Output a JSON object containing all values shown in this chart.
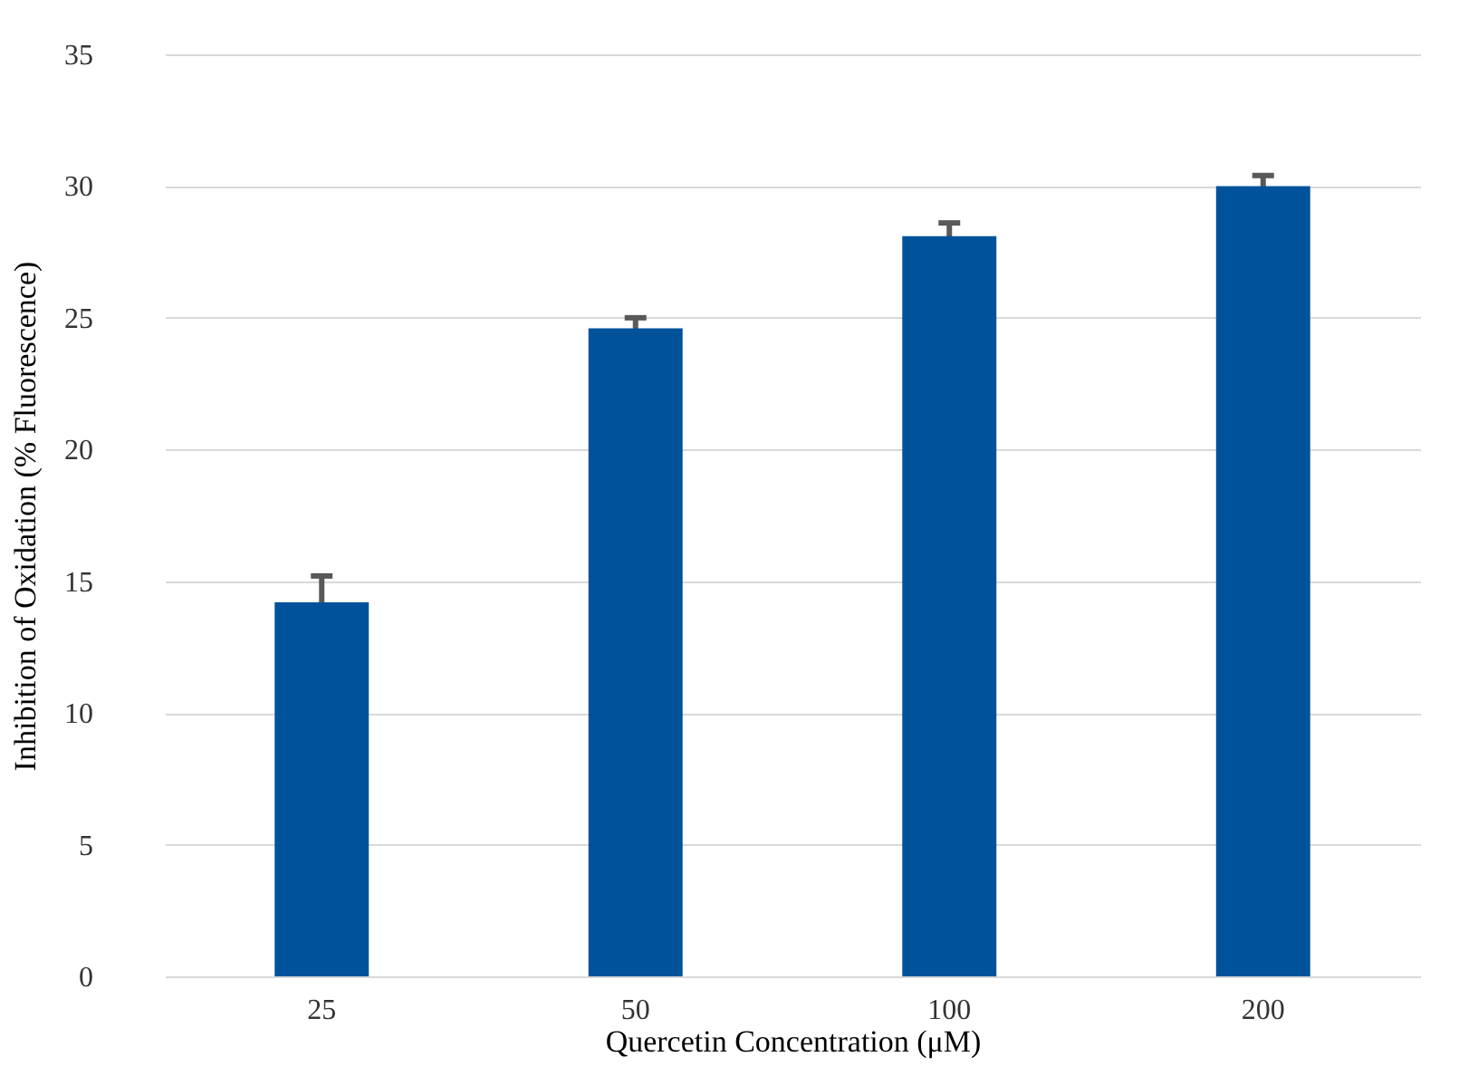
{
  "chart_data": {
    "type": "bar",
    "xlabel": "Quercetin Concentration (μM)",
    "ylabel": "Inhibition of Oxidation (% Fluorescence)",
    "categories": [
      "25",
      "50",
      "100",
      "200"
    ],
    "values": [
      14.2,
      24.6,
      28.1,
      30.0
    ],
    "errors": [
      1.0,
      0.4,
      0.5,
      0.4
    ],
    "color": "#00539b",
    "ylim": [
      0,
      35
    ],
    "yticks": [
      0,
      5,
      10,
      15,
      20,
      25,
      30,
      35
    ],
    "grid": "y"
  }
}
